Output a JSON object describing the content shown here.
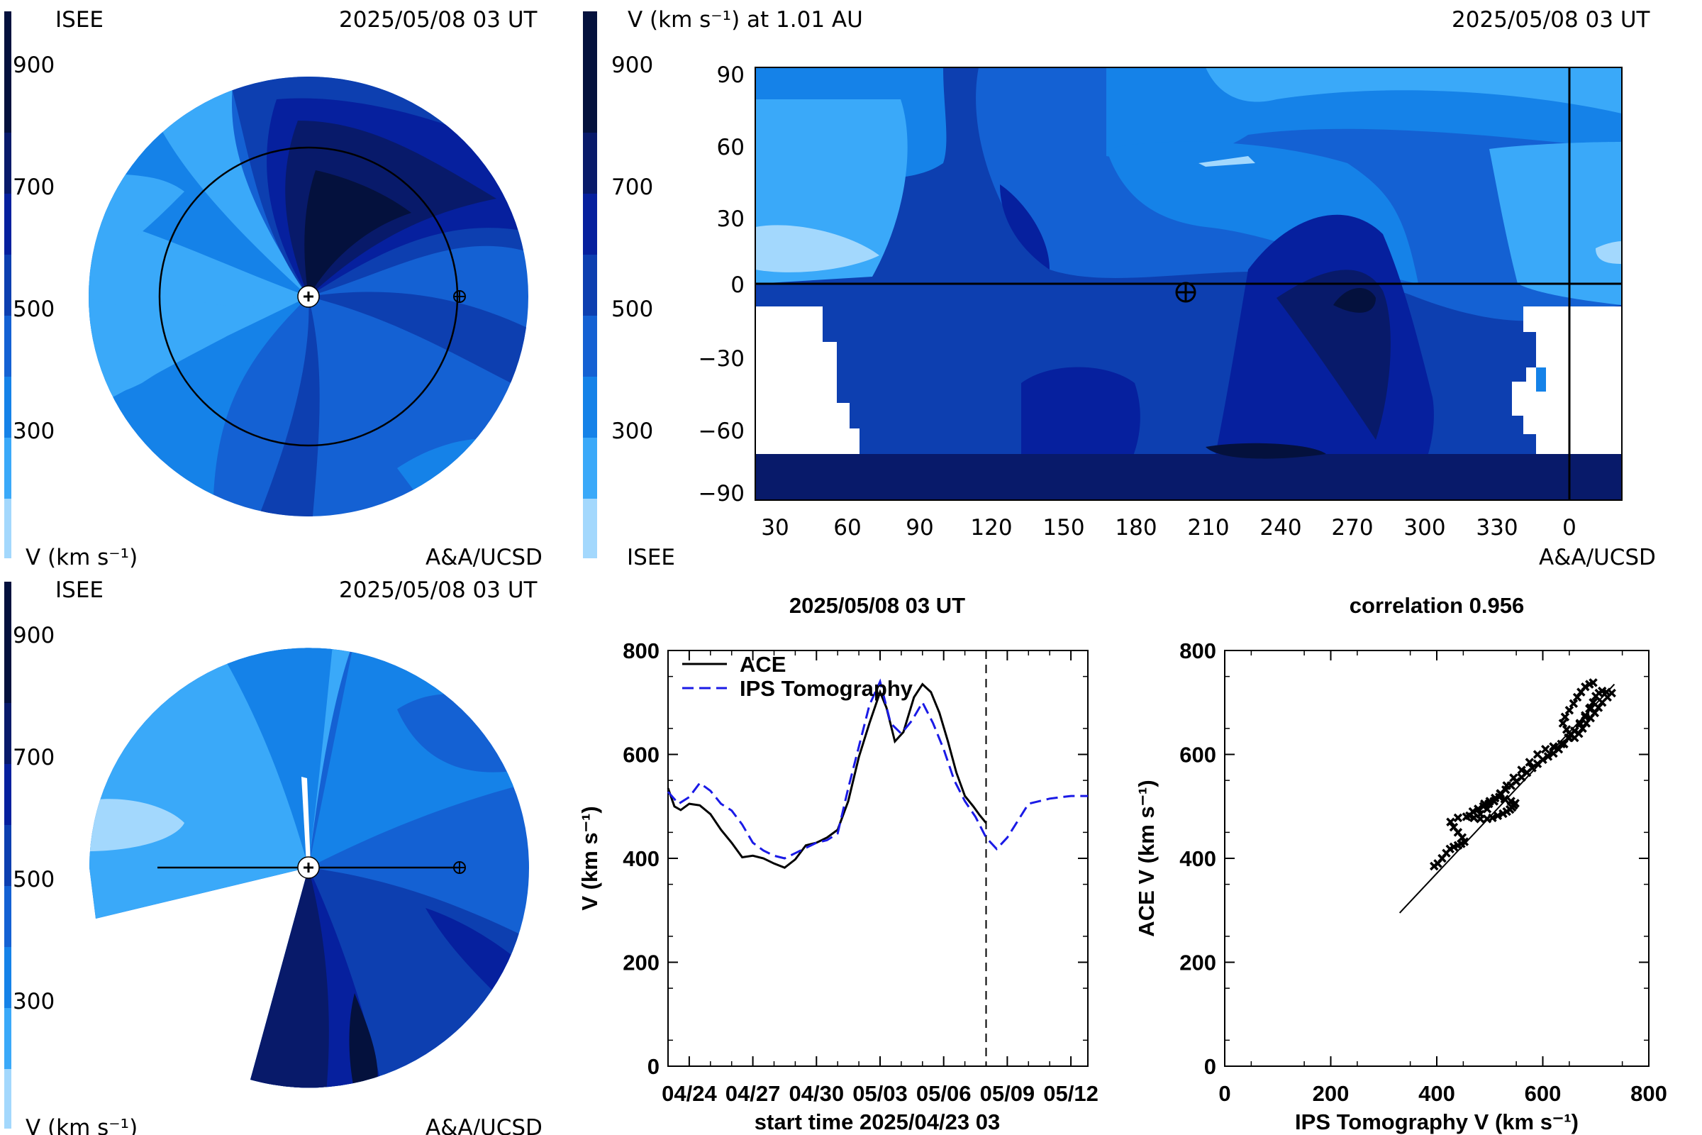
{
  "colors": {
    "v100": "#a3d8fd",
    "v300": "#3aa9f9",
    "v400": "#1582e8",
    "v500": "#1461d3",
    "v600": "#0d3fb0",
    "v700": "#06209e",
    "v800": "#081a6a",
    "v900": "#04113d",
    "line_ace": "#000000",
    "line_ips": "#1a1ae6"
  },
  "top_left": {
    "org": "ISEE",
    "timestamp": "2025/05/08 03 UT",
    "colorbar_ticks": [
      "900",
      "700",
      "500",
      "300"
    ],
    "unit_label": "V (km s⁻¹)",
    "credit": "A&A/UCSD"
  },
  "top_right": {
    "colorbar_ticks": [
      "900",
      "700",
      "500",
      "300"
    ],
    "title": "V (km s⁻¹) at 1.01 AU",
    "timestamp": "2025/05/08 03 UT",
    "org": "ISEE",
    "credit": "A&A/UCSD",
    "y_ticks": [
      "90",
      "60",
      "30",
      "0",
      "−30",
      "−60",
      "−90"
    ],
    "x_ticks": [
      "30",
      "60",
      "90",
      "120",
      "150",
      "180",
      "210",
      "240",
      "270",
      "300",
      "330",
      "0"
    ]
  },
  "bottom_left": {
    "org": "ISEE",
    "timestamp": "2025/05/08 03 UT",
    "colorbar_ticks": [
      "900",
      "700",
      "500",
      "300"
    ],
    "unit_label": "V (km s⁻¹)",
    "credit": "A&A/UCSD"
  },
  "chart_data": [
    {
      "type": "line",
      "title": "2025/05/08 03 UT",
      "xlabel": "start time 2025/04/23 03",
      "ylabel": "V (km s⁻¹)",
      "x_tick_labels": [
        "04/24",
        "04/27",
        "04/30",
        "05/03",
        "05/06",
        "05/09",
        "05/12"
      ],
      "x_tick_days": [
        1,
        4,
        7,
        10,
        13,
        16,
        19
      ],
      "y_ticks": [
        0,
        200,
        400,
        600,
        800
      ],
      "xlim": [
        0,
        19.8
      ],
      "ylim": [
        0,
        800
      ],
      "now_marker_day": 15,
      "legend_placement": "top-left",
      "series": [
        {
          "name": "ACE",
          "style": "solid",
          "x": [
            0,
            0.3,
            0.6,
            1.0,
            1.5,
            2.0,
            2.5,
            3.0,
            3.5,
            4.0,
            4.5,
            5.0,
            5.5,
            6.0,
            6.5,
            7.0,
            7.5,
            8.0,
            8.5,
            9.0,
            9.5,
            10.0,
            10.3,
            10.7,
            11.1,
            11.6,
            12.0,
            12.4,
            12.8,
            13.2,
            13.6,
            14.0,
            14.4,
            14.7,
            15.0
          ],
          "y": [
            535,
            500,
            493,
            505,
            502,
            485,
            455,
            430,
            402,
            405,
            400,
            390,
            382,
            398,
            425,
            430,
            440,
            455,
            510,
            595,
            660,
            720,
            690,
            625,
            643,
            710,
            735,
            720,
            680,
            625,
            565,
            520,
            500,
            483,
            468
          ]
        },
        {
          "name": "IPS Tomography",
          "style": "dashed",
          "x": [
            0,
            0.5,
            1.0,
            1.5,
            2.0,
            2.5,
            3.0,
            3.5,
            4.0,
            4.5,
            5.0,
            5.5,
            6.0,
            6.5,
            7.0,
            7.5,
            8.0,
            8.5,
            9.0,
            9.5,
            10.0,
            10.5,
            11.0,
            11.5,
            12.0,
            12.5,
            13.0,
            13.5,
            14.0,
            14.5,
            15.0,
            15.5,
            16.0,
            17.0,
            18.0,
            19.0,
            19.8
          ],
          "y": [
            528,
            505,
            518,
            545,
            530,
            505,
            492,
            465,
            430,
            415,
            405,
            400,
            410,
            420,
            430,
            435,
            448,
            535,
            615,
            695,
            740,
            660,
            640,
            665,
            700,
            660,
            610,
            550,
            510,
            480,
            440,
            418,
            440,
            505,
            515,
            520,
            520
          ]
        }
      ]
    },
    {
      "type": "scatter",
      "title": "correlation 0.956",
      "xlabel": "IPS Tomography V (km s⁻¹)",
      "ylabel": "ACE V (km s⁻¹)",
      "x_ticks": [
        0,
        200,
        400,
        600,
        800
      ],
      "y_ticks": [
        0,
        200,
        400,
        600,
        800
      ],
      "xlim": [
        0,
        800
      ],
      "ylim": [
        0,
        800
      ],
      "fit_line": {
        "x": [
          330,
          735
        ],
        "y": [
          295,
          735
        ]
      },
      "points": {
        "x": [
          395,
          402,
          410,
          418,
          425,
          432,
          440,
          446,
          452,
          448,
          440,
          432,
          426,
          440,
          456,
          470,
          482,
          495,
          505,
          515,
          525,
          532,
          538,
          542,
          545,
          548,
          540,
          528,
          518,
          508,
          498,
          488,
          478,
          468,
          462,
          470,
          482,
          495,
          508,
          520,
          532,
          545,
          560,
          575,
          590,
          605,
          620,
          635,
          648,
          660,
          670,
          680,
          688,
          695,
          700,
          706,
          712,
          720,
          730,
          722,
          712,
          705,
          698,
          690,
          682,
          675,
          668,
          660,
          652,
          645,
          638,
          642,
          650,
          658,
          665,
          672,
          680,
          688,
          695,
          690,
          680,
          670,
          660,
          650,
          640,
          630,
          620,
          610,
          600,
          590,
          580,
          570,
          560,
          550,
          540,
          530,
          520,
          510,
          500,
          490
        ],
        "y": [
          385,
          390,
          400,
          410,
          418,
          422,
          425,
          428,
          432,
          440,
          450,
          460,
          470,
          478,
          480,
          478,
          476,
          476,
          478,
          482,
          486,
          490,
          494,
          498,
          502,
          506,
          510,
          514,
          518,
          510,
          505,
          500,
          495,
          490,
          482,
          478,
          485,
          495,
          510,
          525,
          540,
          555,
          570,
          585,
          600,
          610,
          615,
          620,
          632,
          645,
          658,
          672,
          688,
          700,
          712,
          718,
          722,
          720,
          718,
          710,
          700,
          690,
          680,
          670,
          660,
          650,
          640,
          632,
          638,
          648,
          660,
          672,
          685,
          698,
          710,
          720,
          730,
          735,
          738,
          690,
          675,
          660,
          645,
          632,
          620,
          610,
          602,
          596,
          590,
          582,
          574,
          565,
          556,
          548,
          540,
          532,
          524,
          516,
          510,
          505
        ]
      }
    }
  ]
}
